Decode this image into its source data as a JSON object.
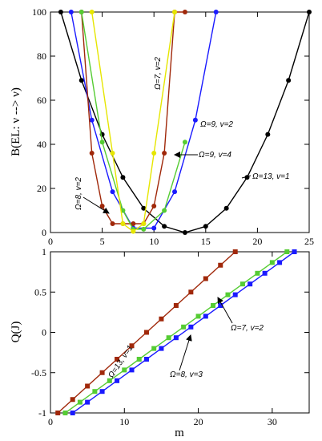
{
  "chart_data": [
    {
      "type": "line",
      "ylabel": "B(EL: ν --> ν)",
      "xlabel": "",
      "xlim": [
        0,
        25
      ],
      "ylim": [
        0,
        100
      ],
      "xticks": [
        "0",
        "5",
        "10",
        "15",
        "20",
        "25"
      ],
      "yticks": [
        "0",
        "20",
        "40",
        "60",
        "80",
        "100"
      ],
      "series": [
        {
          "color": "#000000",
          "marker": "circle",
          "x": [
            1,
            3,
            5,
            7,
            9,
            11,
            13,
            15,
            17,
            19,
            21,
            23,
            25
          ],
          "y": [
            100,
            69,
            44.5,
            25,
            11,
            2.8,
            0,
            2.8,
            11,
            25,
            44.5,
            69,
            100
          ]
        },
        {
          "color": "#1a1aff",
          "marker": "circle",
          "x": [
            2,
            4,
            6,
            8,
            10,
            12,
            14,
            16
          ],
          "y": [
            100,
            51,
            18.5,
            2,
            2,
            18.5,
            51,
            100
          ]
        },
        {
          "color": "#a0280a",
          "marker": "circle",
          "x": [
            3,
            4,
            5,
            6,
            7,
            8,
            9,
            10,
            11,
            12,
            13
          ],
          "y": [
            100,
            36,
            12,
            4,
            4,
            4,
            4,
            12,
            36,
            100,
            100
          ]
        },
        {
          "color": "#55cc33",
          "marker": "circle",
          "x": [
            3,
            5,
            7,
            8,
            9,
            11,
            13
          ],
          "y": [
            100,
            41,
            10,
            1.5,
            1.5,
            10,
            41
          ]
        },
        {
          "color": "#e6e600",
          "marker": "circle",
          "x": [
            4,
            6,
            7,
            8,
            9,
            10,
            12
          ],
          "y": [
            100,
            36,
            4,
            0.5,
            4,
            36,
            100
          ]
        }
      ],
      "annotations": [
        {
          "text": "Ω=7, v=2"
        },
        {
          "text": "Ω=9, v=2"
        },
        {
          "text": "Ω=9, v=4"
        },
        {
          "text": "Ω=13, v=1"
        },
        {
          "text": "Ω=8, v=2"
        }
      ]
    },
    {
      "type": "line",
      "ylabel": "Q(J)",
      "xlabel": "m",
      "xlim": [
        0,
        35
      ],
      "ylim": [
        -1,
        1
      ],
      "xticks": [
        "0",
        "10",
        "20",
        "30"
      ],
      "yticks": [
        "-1",
        "-0.5",
        "0",
        "0.5",
        "1"
      ],
      "series": [
        {
          "color": "#a0280a",
          "marker": "square",
          "x_start": 1,
          "x_end": 25,
          "values": "linear from -1 at m=1 to 1 at m=25, step 2"
        },
        {
          "color": "#55cc33",
          "marker": "square",
          "x_start": 2,
          "x_end": 32,
          "values": "linear from -1 at m=2 to 1 at m=32, step 2"
        },
        {
          "color": "#1a1aff",
          "marker": "square",
          "x_start": 3,
          "x_end": 33,
          "values": "linear from -1 at m=3 to 1 at m=33, step 2"
        }
      ],
      "annotations": [
        {
          "text": "Ω=13, v=1"
        },
        {
          "text": "Ω=7, v=2"
        },
        {
          "text": "Ω=8, v=3"
        }
      ]
    }
  ]
}
